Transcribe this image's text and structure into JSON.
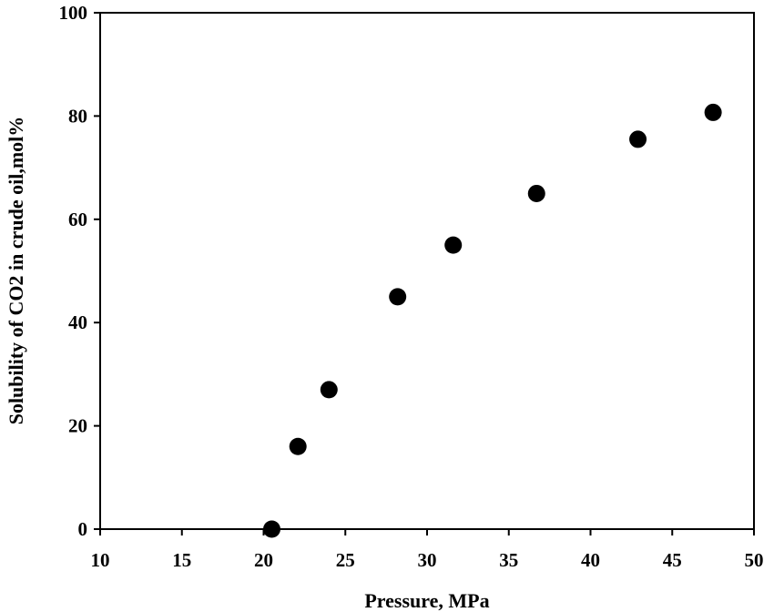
{
  "chart_data": {
    "type": "scatter",
    "title": "",
    "xlabel": "Pressure, MPa",
    "ylabel": "Solubility of CO2 in crude oil,mol%",
    "xlim": [
      10,
      50
    ],
    "ylim": [
      0,
      100
    ],
    "x_ticks": [
      10,
      15,
      20,
      25,
      30,
      35,
      40,
      45,
      50
    ],
    "y_ticks": [
      0,
      20,
      40,
      60,
      80,
      100
    ],
    "grid": false,
    "legend": "none",
    "series": [
      {
        "x": [
          20.5,
          22.1,
          24.0,
          28.2,
          31.6,
          36.7,
          42.9,
          47.5
        ],
        "y": [
          0,
          16,
          27,
          45,
          55,
          65,
          75.5,
          80.7
        ]
      }
    ],
    "marker_color": "#000000"
  }
}
